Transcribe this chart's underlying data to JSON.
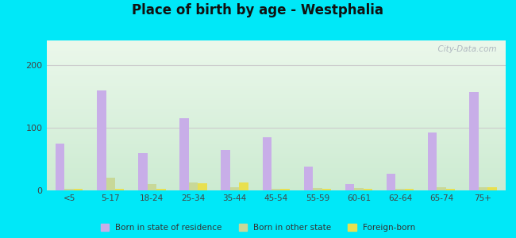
{
  "title": "Place of birth by age - Westphalia",
  "categories": [
    "<5",
    "5-17",
    "18-24",
    "25-34",
    "35-44",
    "45-54",
    "55-59",
    "60-61",
    "62-64",
    "65-74",
    "75+"
  ],
  "born_in_state": [
    75,
    160,
    60,
    115,
    65,
    85,
    38,
    10,
    27,
    93,
    158
  ],
  "born_other_state": [
    2,
    20,
    10,
    13,
    5,
    3,
    4,
    4,
    3,
    5,
    5
  ],
  "foreign_born": [
    3,
    3,
    3,
    12,
    13,
    3,
    3,
    3,
    3,
    3,
    5
  ],
  "bar_color_state": "#c8aee8",
  "bar_color_other": "#c8d898",
  "bar_color_foreign": "#e8e050",
  "ylim": [
    0,
    240
  ],
  "yticks": [
    0,
    100,
    200
  ],
  "outer_bg": "#00e8f8",
  "bar_width": 0.22,
  "watermark": "  City-Data.com",
  "legend_labels": [
    "Born in state of residence",
    "Born in other state",
    "Foreign-born"
  ]
}
